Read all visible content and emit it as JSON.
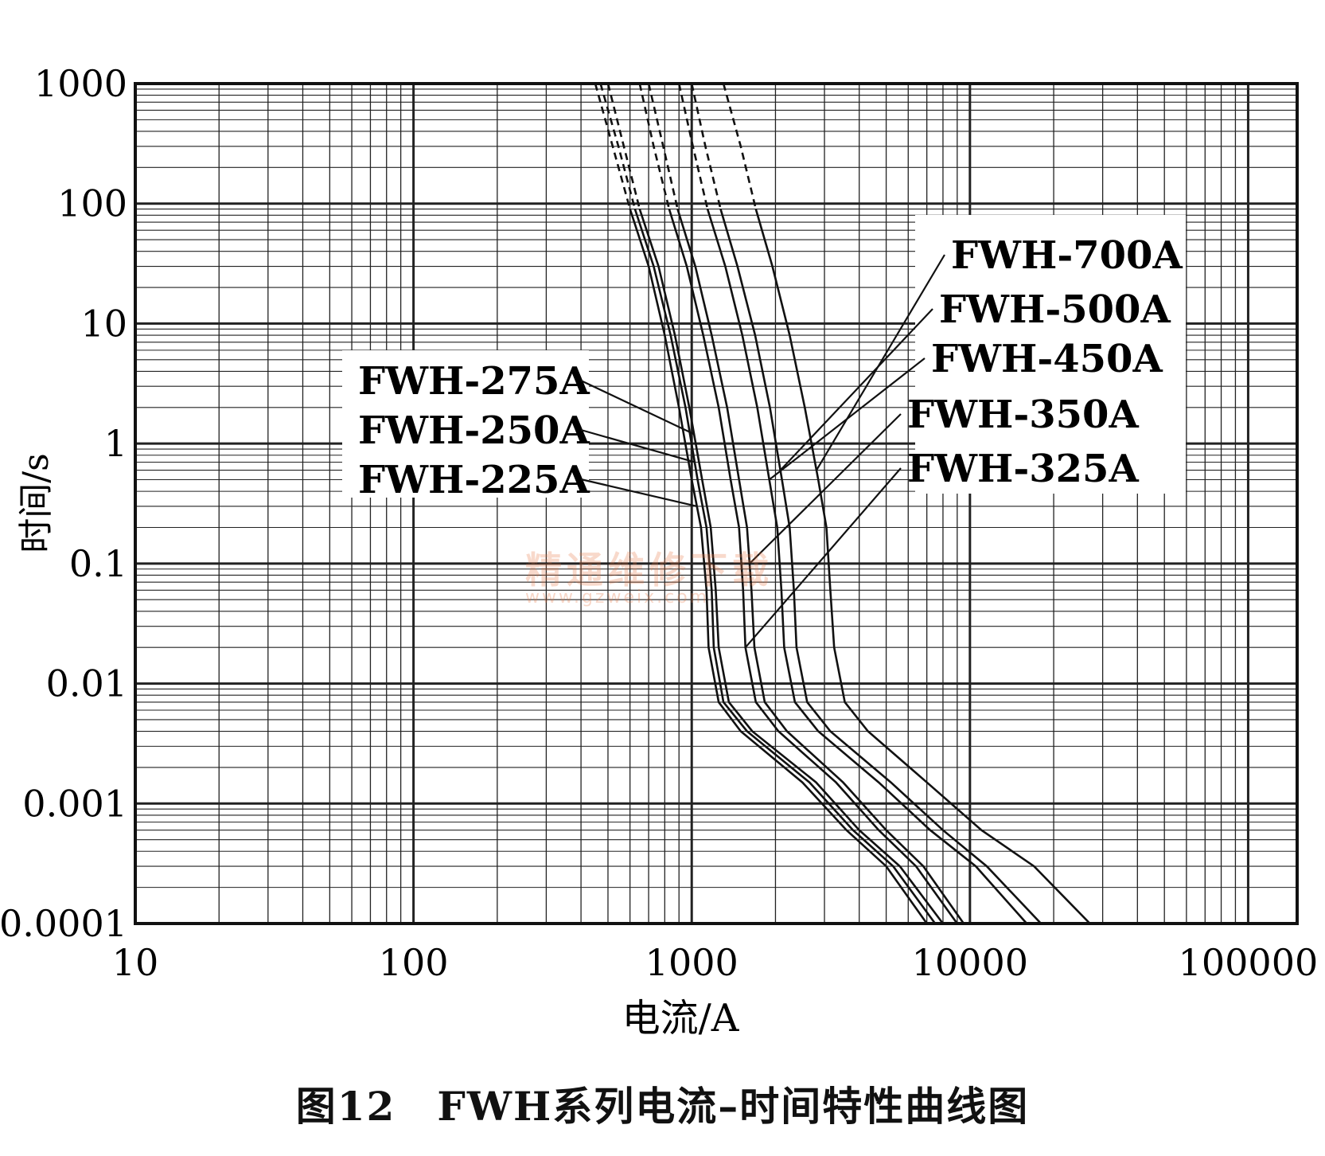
{
  "chart_data": {
    "type": "line",
    "title": "",
    "xlabel": "电流/A",
    "ylabel": "时间/s",
    "x_scale": "log",
    "y_scale": "log",
    "xlim": [
      10,
      150000
    ],
    "ylim": [
      0.0001,
      1000
    ],
    "grid": true,
    "x_ticks": [
      "10",
      "100",
      "1000",
      "10000",
      "100000"
    ],
    "y_ticks": [
      "1000",
      "100",
      "10",
      "1",
      "0.1",
      "0.01",
      "0.001",
      "0.0001"
    ],
    "series": [
      {
        "name": "FWH-225A",
        "dashed_until": 90,
        "points": [
          [
            450,
            1000
          ],
          [
            520,
            300
          ],
          [
            600,
            90
          ],
          [
            700,
            30
          ],
          [
            800,
            8
          ],
          [
            900,
            2
          ],
          [
            1000,
            0.5
          ],
          [
            1080,
            0.2
          ],
          [
            1130,
            0.06
          ],
          [
            1150,
            0.02
          ],
          [
            1250,
            0.007
          ],
          [
            1500,
            0.004
          ],
          [
            2500,
            0.0015
          ],
          [
            3600,
            0.0006
          ],
          [
            5000,
            0.0003
          ],
          [
            7000,
            0.0001
          ]
        ]
      },
      {
        "name": "FWH-250A",
        "dashed_until": 90,
        "points": [
          [
            470,
            1000
          ],
          [
            545,
            300
          ],
          [
            625,
            90
          ],
          [
            730,
            30
          ],
          [
            840,
            8
          ],
          [
            950,
            2
          ],
          [
            1050,
            0.5
          ],
          [
            1130,
            0.2
          ],
          [
            1180,
            0.06
          ],
          [
            1200,
            0.02
          ],
          [
            1300,
            0.007
          ],
          [
            1580,
            0.004
          ],
          [
            2650,
            0.0015
          ],
          [
            3800,
            0.0006
          ],
          [
            5300,
            0.0003
          ],
          [
            7500,
            0.0001
          ]
        ]
      },
      {
        "name": "FWH-275A",
        "dashed_until": 90,
        "points": [
          [
            500,
            1000
          ],
          [
            570,
            300
          ],
          [
            650,
            90
          ],
          [
            760,
            30
          ],
          [
            870,
            8
          ],
          [
            980,
            2
          ],
          [
            1090,
            0.5
          ],
          [
            1170,
            0.2
          ],
          [
            1220,
            0.06
          ],
          [
            1250,
            0.02
          ],
          [
            1360,
            0.007
          ],
          [
            1650,
            0.004
          ],
          [
            2800,
            0.0015
          ],
          [
            4000,
            0.0006
          ],
          [
            5600,
            0.0003
          ],
          [
            8000,
            0.0001
          ]
        ]
      },
      {
        "name": "FWH-325A",
        "dashed_until": 90,
        "points": [
          [
            650,
            1000
          ],
          [
            730,
            300
          ],
          [
            830,
            90
          ],
          [
            960,
            30
          ],
          [
            1100,
            8
          ],
          [
            1250,
            2
          ],
          [
            1380,
            0.5
          ],
          [
            1480,
            0.2
          ],
          [
            1530,
            0.06
          ],
          [
            1560,
            0.02
          ],
          [
            1700,
            0.007
          ],
          [
            2050,
            0.004
          ],
          [
            3300,
            0.0015
          ],
          [
            4700,
            0.0006
          ],
          [
            6400,
            0.0003
          ],
          [
            9000,
            0.0001
          ]
        ]
      },
      {
        "name": "FWH-350A",
        "dashed_until": 90,
        "points": [
          [
            700,
            1000
          ],
          [
            790,
            300
          ],
          [
            890,
            90
          ],
          [
            1030,
            30
          ],
          [
            1180,
            8
          ],
          [
            1340,
            2
          ],
          [
            1480,
            0.5
          ],
          [
            1580,
            0.2
          ],
          [
            1640,
            0.06
          ],
          [
            1680,
            0.02
          ],
          [
            1830,
            0.007
          ],
          [
            2200,
            0.004
          ],
          [
            3500,
            0.0015
          ],
          [
            5000,
            0.0006
          ],
          [
            6800,
            0.0003
          ],
          [
            9500,
            0.0001
          ]
        ]
      },
      {
        "name": "FWH-450A",
        "dashed_until": 90,
        "points": [
          [
            900,
            1000
          ],
          [
            1010,
            300
          ],
          [
            1140,
            90
          ],
          [
            1320,
            30
          ],
          [
            1520,
            8
          ],
          [
            1720,
            2
          ],
          [
            1900,
            0.5
          ],
          [
            2030,
            0.2
          ],
          [
            2100,
            0.06
          ],
          [
            2150,
            0.02
          ],
          [
            2350,
            0.007
          ],
          [
            2850,
            0.004
          ],
          [
            4700,
            0.0015
          ],
          [
            7200,
            0.0006
          ],
          [
            10500,
            0.0003
          ],
          [
            16000,
            0.0001
          ]
        ]
      },
      {
        "name": "FWH-500A",
        "dashed_until": 90,
        "points": [
          [
            1000,
            1000
          ],
          [
            1120,
            300
          ],
          [
            1270,
            90
          ],
          [
            1460,
            30
          ],
          [
            1690,
            8
          ],
          [
            1910,
            2
          ],
          [
            2110,
            0.5
          ],
          [
            2250,
            0.2
          ],
          [
            2330,
            0.06
          ],
          [
            2380,
            0.02
          ],
          [
            2600,
            0.007
          ],
          [
            3150,
            0.004
          ],
          [
            5200,
            0.0015
          ],
          [
            8000,
            0.0006
          ],
          [
            11500,
            0.0003
          ],
          [
            18000,
            0.0001
          ]
        ]
      },
      {
        "name": "FWH-700A",
        "dashed_until": 90,
        "points": [
          [
            1300,
            1000
          ],
          [
            1500,
            300
          ],
          [
            1700,
            90
          ],
          [
            1950,
            30
          ],
          [
            2250,
            8
          ],
          [
            2550,
            2
          ],
          [
            2850,
            0.5
          ],
          [
            3050,
            0.2
          ],
          [
            3150,
            0.06
          ],
          [
            3250,
            0.02
          ],
          [
            3550,
            0.007
          ],
          [
            4300,
            0.004
          ],
          [
            7000,
            0.0015
          ],
          [
            11000,
            0.0006
          ],
          [
            17000,
            0.0003
          ],
          [
            27000,
            0.0001
          ]
        ]
      }
    ],
    "annotations": [
      {
        "text": "FWH-700A",
        "series": "FWH-700A",
        "side": "right"
      },
      {
        "text": "FWH-500A",
        "series": "FWH-500A",
        "side": "right"
      },
      {
        "text": "FWH-450A",
        "series": "FWH-450A",
        "side": "right"
      },
      {
        "text": "FWH-350A",
        "series": "FWH-350A",
        "side": "right"
      },
      {
        "text": "FWH-325A",
        "series": "FWH-325A",
        "side": "right"
      },
      {
        "text": "FWH-275A",
        "series": "FWH-275A",
        "side": "left"
      },
      {
        "text": "FWH-250A",
        "series": "FWH-250A",
        "side": "left"
      },
      {
        "text": "FWH-225A",
        "series": "FWH-225A",
        "side": "left"
      }
    ]
  },
  "caption": "图12　FWH系列电流–时间特性曲线图",
  "watermark": {
    "text": "精通维修下载",
    "url": "www.gzweix.com"
  }
}
